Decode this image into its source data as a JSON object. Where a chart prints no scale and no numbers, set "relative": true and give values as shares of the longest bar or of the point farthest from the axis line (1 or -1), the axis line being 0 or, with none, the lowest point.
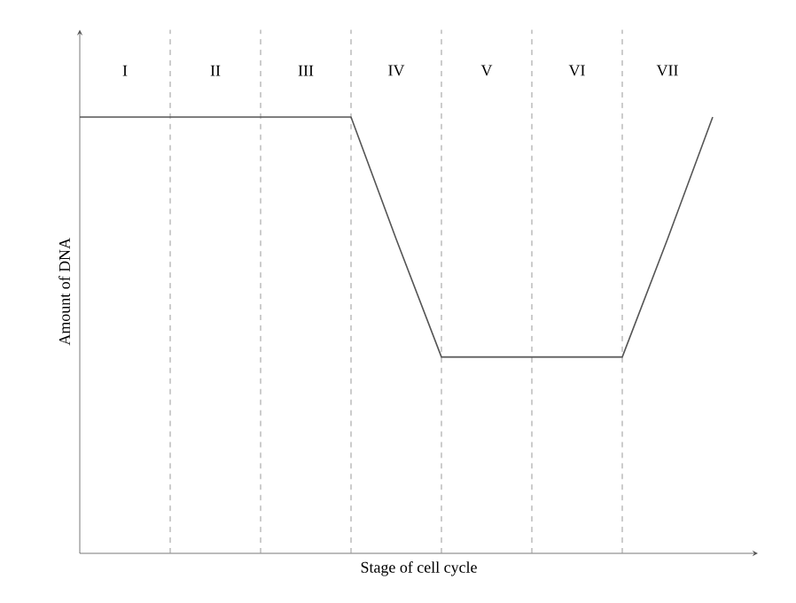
{
  "chart_data": {
    "type": "line",
    "xlabel": "Stage of cell cycle",
    "ylabel": "Amount of DNA",
    "relative": true,
    "tick_labels": "x",
    "grid": "x",
    "categories": [
      null,
      "I",
      null,
      "II",
      null,
      "III",
      null,
      "IV",
      null,
      "V",
      null,
      "VI",
      null,
      "VII",
      null
    ],
    "series": [
      {
        "color": "#555555",
        "values": [
          1,
          1,
          1,
          1,
          1,
          1,
          1,
          0.72,
          0.45,
          0.45,
          0.45,
          0.45,
          0.45,
          0.72,
          1
        ]
      }
    ]
  }
}
